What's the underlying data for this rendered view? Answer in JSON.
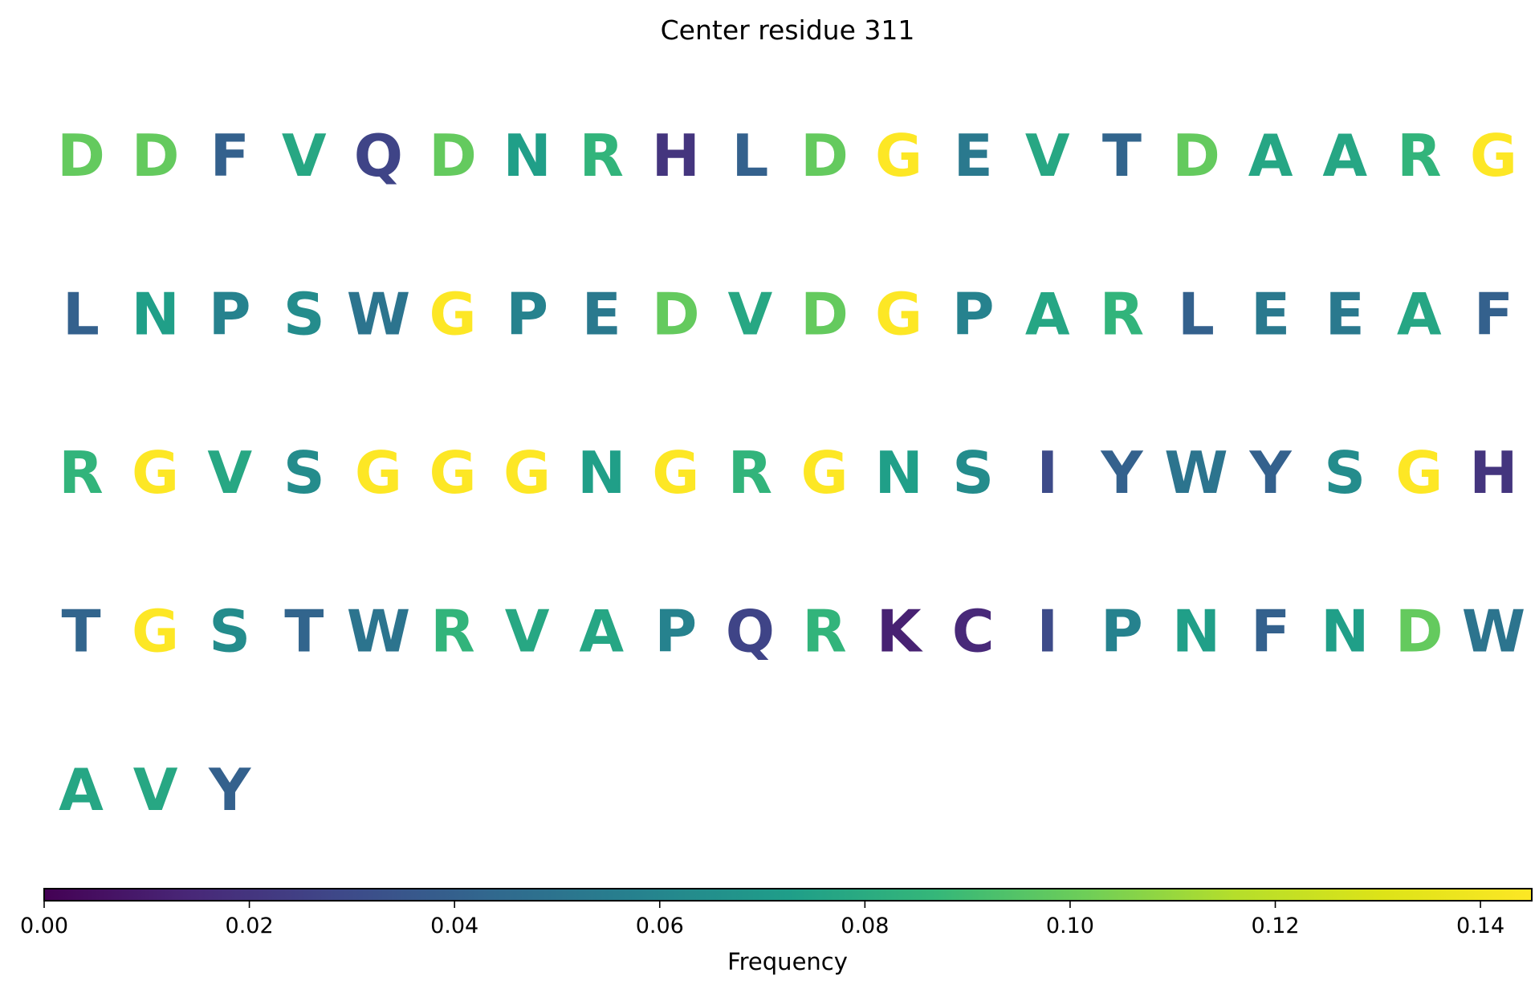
{
  "chart_data": {
    "type": "table",
    "title": "Center residue 311",
    "cells": [
      {
        "letter": "D",
        "value": 0.099
      },
      {
        "letter": "D",
        "value": 0.099
      },
      {
        "letter": "F",
        "value": 0.04
      },
      {
        "letter": "V",
        "value": 0.078
      },
      {
        "letter": "Q",
        "value": 0.027
      },
      {
        "letter": "D",
        "value": 0.099
      },
      {
        "letter": "N",
        "value": 0.073
      },
      {
        "letter": "R",
        "value": 0.085
      },
      {
        "letter": "H",
        "value": 0.02
      },
      {
        "letter": "L",
        "value": 0.04
      },
      {
        "letter": "D",
        "value": 0.099
      },
      {
        "letter": "G",
        "value": 0.145
      },
      {
        "letter": "E",
        "value": 0.053
      },
      {
        "letter": "V",
        "value": 0.078
      },
      {
        "letter": "T",
        "value": 0.042
      },
      {
        "letter": "D",
        "value": 0.099
      },
      {
        "letter": "A",
        "value": 0.077
      },
      {
        "letter": "A",
        "value": 0.077
      },
      {
        "letter": "R",
        "value": 0.085
      },
      {
        "letter": "G",
        "value": 0.145
      },
      {
        "letter": "L",
        "value": 0.04
      },
      {
        "letter": "N",
        "value": 0.073
      },
      {
        "letter": "P",
        "value": 0.058
      },
      {
        "letter": "S",
        "value": 0.063
      },
      {
        "letter": "W",
        "value": 0.05
      },
      {
        "letter": "G",
        "value": 0.145
      },
      {
        "letter": "P",
        "value": 0.058
      },
      {
        "letter": "E",
        "value": 0.053
      },
      {
        "letter": "D",
        "value": 0.099
      },
      {
        "letter": "V",
        "value": 0.078
      },
      {
        "letter": "D",
        "value": 0.099
      },
      {
        "letter": "G",
        "value": 0.145
      },
      {
        "letter": "P",
        "value": 0.058
      },
      {
        "letter": "A",
        "value": 0.077
      },
      {
        "letter": "R",
        "value": 0.085
      },
      {
        "letter": "L",
        "value": 0.04
      },
      {
        "letter": "E",
        "value": 0.053
      },
      {
        "letter": "E",
        "value": 0.053
      },
      {
        "letter": "A",
        "value": 0.077
      },
      {
        "letter": "F",
        "value": 0.04
      },
      {
        "letter": "R",
        "value": 0.085
      },
      {
        "letter": "G",
        "value": 0.145
      },
      {
        "letter": "V",
        "value": 0.078
      },
      {
        "letter": "S",
        "value": 0.063
      },
      {
        "letter": "G",
        "value": 0.145
      },
      {
        "letter": "G",
        "value": 0.145
      },
      {
        "letter": "G",
        "value": 0.145
      },
      {
        "letter": "N",
        "value": 0.073
      },
      {
        "letter": "G",
        "value": 0.145
      },
      {
        "letter": "R",
        "value": 0.085
      },
      {
        "letter": "G",
        "value": 0.145
      },
      {
        "letter": "N",
        "value": 0.073
      },
      {
        "letter": "S",
        "value": 0.063
      },
      {
        "letter": "I",
        "value": 0.03
      },
      {
        "letter": "Y",
        "value": 0.04
      },
      {
        "letter": "W",
        "value": 0.05
      },
      {
        "letter": "Y",
        "value": 0.04
      },
      {
        "letter": "S",
        "value": 0.063
      },
      {
        "letter": "G",
        "value": 0.145
      },
      {
        "letter": "H",
        "value": 0.02
      },
      {
        "letter": "T",
        "value": 0.042
      },
      {
        "letter": "G",
        "value": 0.145
      },
      {
        "letter": "S",
        "value": 0.063
      },
      {
        "letter": "T",
        "value": 0.042
      },
      {
        "letter": "W",
        "value": 0.05
      },
      {
        "letter": "R",
        "value": 0.085
      },
      {
        "letter": "V",
        "value": 0.078
      },
      {
        "letter": "A",
        "value": 0.077
      },
      {
        "letter": "P",
        "value": 0.058
      },
      {
        "letter": "Q",
        "value": 0.027
      },
      {
        "letter": "R",
        "value": 0.085
      },
      {
        "letter": "K",
        "value": 0.012
      },
      {
        "letter": "C",
        "value": 0.015
      },
      {
        "letter": "I",
        "value": 0.03
      },
      {
        "letter": "P",
        "value": 0.058
      },
      {
        "letter": "N",
        "value": 0.073
      },
      {
        "letter": "F",
        "value": 0.04
      },
      {
        "letter": "N",
        "value": 0.073
      },
      {
        "letter": "D",
        "value": 0.099
      },
      {
        "letter": "W",
        "value": 0.05
      },
      {
        "letter": "A",
        "value": 0.077
      },
      {
        "letter": "V",
        "value": 0.078
      },
      {
        "letter": "Y",
        "value": 0.04
      }
    ],
    "columns": 20,
    "colorbar": {
      "label": "Frequency",
      "range": [
        0,
        0.145
      ],
      "ticks": [
        "0.00",
        "0.02",
        "0.04",
        "0.06",
        "0.08",
        "0.10",
        "0.12",
        "0.14"
      ],
      "tick_values": [
        0,
        0.02,
        0.04,
        0.06,
        0.08,
        0.1,
        0.12,
        0.14
      ],
      "colormap": "viridis"
    }
  }
}
